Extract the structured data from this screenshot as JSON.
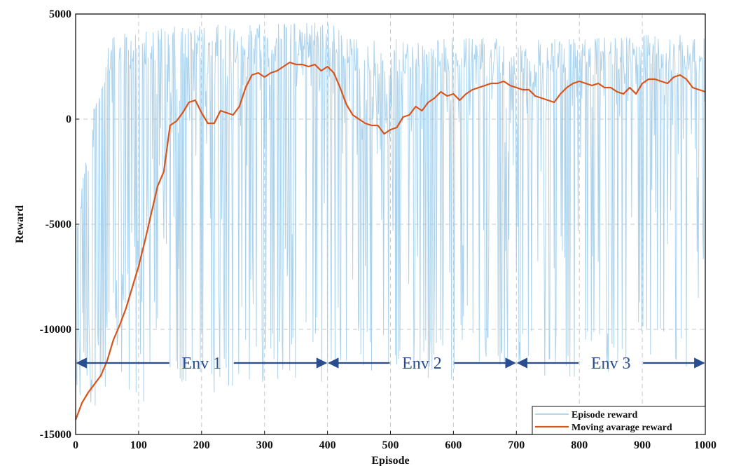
{
  "chart_data": {
    "type": "line",
    "xlabel": "Episode",
    "ylabel": "Reward",
    "xlim": [
      0,
      1000
    ],
    "ylim": [
      -15000,
      5000
    ],
    "x_ticks": [
      0,
      100,
      200,
      300,
      400,
      500,
      600,
      700,
      800,
      900,
      1000
    ],
    "y_ticks": [
      -15000,
      -10000,
      -5000,
      0,
      5000
    ],
    "grid": "dashed",
    "legend_position": "bottom-right",
    "series": [
      {
        "name": "Episode reward",
        "color": "#9dcbea",
        "style": "noisy-line",
        "envelope_x": [
          0,
          50,
          100,
          150,
          200,
          300,
          400,
          450,
          500,
          600,
          700,
          800,
          900,
          1000
        ],
        "envelope_top": [
          -4000,
          3800,
          4300,
          4400,
          4500,
          4500,
          4600,
          3800,
          3800,
          3900,
          3800,
          3800,
          4000,
          4000
        ],
        "envelope_bottom": [
          -13000,
          -14000,
          -13500,
          -13500,
          -13500,
          -12500,
          -12500,
          -12000,
          -12500,
          -12500,
          -12000,
          -12500,
          -12000,
          -12000
        ]
      },
      {
        "name": "Moving avarage reward",
        "color": "#d9541a",
        "x": [
          0,
          10,
          20,
          30,
          40,
          50,
          60,
          70,
          80,
          90,
          100,
          110,
          120,
          130,
          140,
          150,
          155,
          160,
          170,
          180,
          190,
          200,
          210,
          220,
          230,
          240,
          250,
          260,
          270,
          280,
          290,
          300,
          310,
          320,
          330,
          340,
          350,
          360,
          370,
          380,
          390,
          400,
          410,
          420,
          430,
          440,
          450,
          460,
          470,
          480,
          490,
          500,
          510,
          520,
          530,
          540,
          550,
          560,
          570,
          580,
          590,
          600,
          610,
          620,
          630,
          640,
          650,
          660,
          670,
          680,
          690,
          700,
          710,
          720,
          730,
          740,
          750,
          760,
          770,
          780,
          790,
          800,
          810,
          820,
          830,
          840,
          850,
          860,
          870,
          880,
          890,
          900,
          910,
          920,
          930,
          940,
          950,
          960,
          970,
          980,
          990,
          1000
        ],
        "values": [
          -14300,
          -13500,
          -13000,
          -12600,
          -12200,
          -11500,
          -10500,
          -9800,
          -9000,
          -8000,
          -7000,
          -5800,
          -4500,
          -3200,
          -2500,
          -300,
          -200,
          -100,
          300,
          800,
          900,
          300,
          -200,
          -200,
          400,
          300,
          200,
          600,
          1500,
          2100,
          2200,
          2000,
          2200,
          2300,
          2500,
          2700,
          2600,
          2600,
          2500,
          2600,
          2300,
          2500,
          2200,
          1500,
          700,
          200,
          0,
          -200,
          -300,
          -300,
          -700,
          -500,
          -400,
          100,
          200,
          600,
          400,
          800,
          1000,
          1300,
          1100,
          1200,
          900,
          1200,
          1400,
          1500,
          1600,
          1700,
          1700,
          1800,
          1600,
          1500,
          1400,
          1400,
          1100,
          1000,
          900,
          800,
          1200,
          1500,
          1700,
          1800,
          1700,
          1600,
          1700,
          1500,
          1500,
          1300,
          1200,
          1500,
          1200,
          1700,
          1900,
          1900,
          1800,
          1700,
          2000,
          2100,
          1900,
          1500,
          1400,
          1300
        ]
      }
    ],
    "annotations": [
      {
        "text": "Env 1",
        "x_start": 0,
        "x_end": 400,
        "y": -11600
      },
      {
        "text": "Env 2",
        "x_start": 400,
        "x_end": 700,
        "y": -11600
      },
      {
        "text": "Env 3",
        "x_start": 700,
        "x_end": 1000,
        "y": -11600
      }
    ]
  }
}
